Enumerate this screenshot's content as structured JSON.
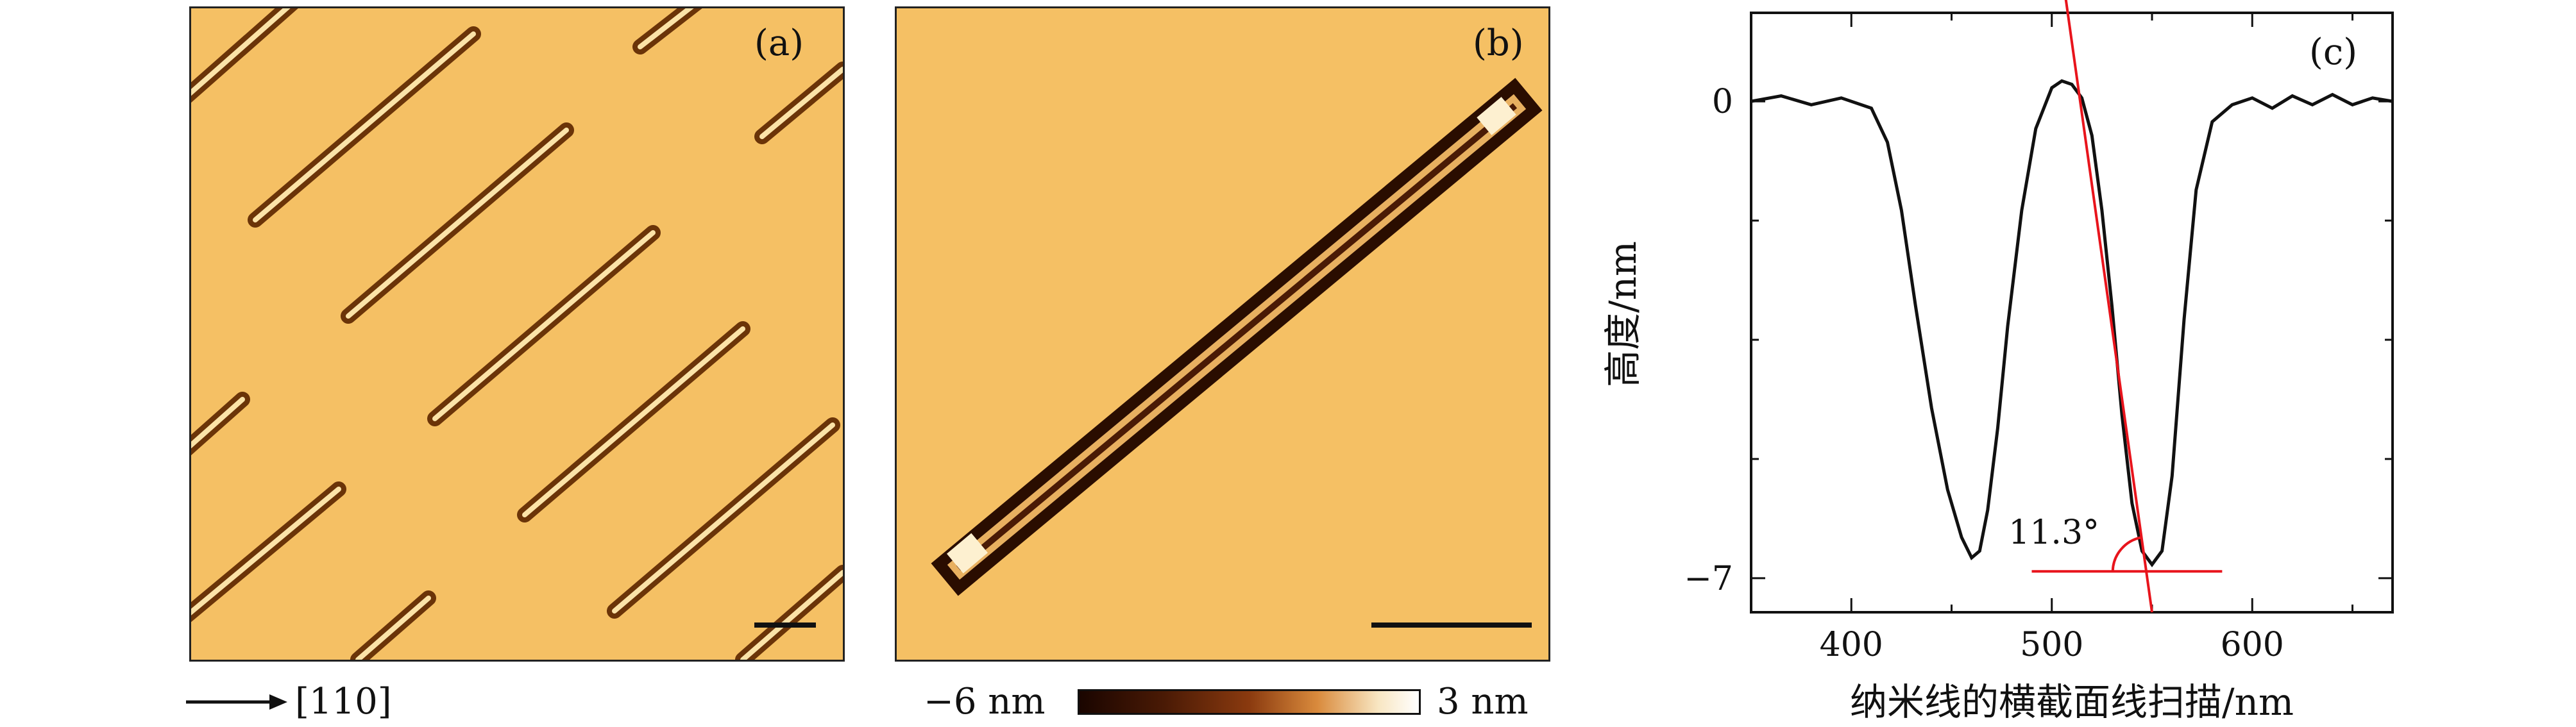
{
  "panels": {
    "a_label": "(a)",
    "b_label": "(b)",
    "c_label": "(c)"
  },
  "direction_label": "[110]",
  "colorbar": {
    "min_label": "−6 nm",
    "max_label": "3 nm"
  },
  "chart_data": {
    "type": "line",
    "xlabel": "纳米线的横截面线扫描/nm",
    "ylabel": "高度/nm",
    "xlim": [
      350,
      670
    ],
    "ylim": [
      -7.5,
      1.3
    ],
    "xticks": [
      400,
      500,
      600
    ],
    "yticks": [
      0,
      -7
    ],
    "yticklabels": [
      "0",
      "−7"
    ],
    "grid": false,
    "annotation": {
      "text": "11.3°",
      "x": 520,
      "y": -6.4
    },
    "series": [
      {
        "x": [
          350,
          365,
          380,
          395,
          410,
          418,
          425,
          432,
          440,
          448,
          455,
          460,
          464,
          468,
          473,
          478,
          485,
          492,
          500,
          505,
          510,
          515,
          520,
          525,
          530,
          535,
          540,
          545,
          550,
          555,
          560,
          566,
          572,
          580,
          590,
          600,
          610,
          620,
          630,
          640,
          650,
          660,
          670
        ],
        "y": [
          0,
          0.08,
          -0.05,
          0.05,
          -0.1,
          -0.6,
          -1.6,
          -3.0,
          -4.5,
          -5.7,
          -6.4,
          -6.7,
          -6.6,
          -6.0,
          -4.8,
          -3.3,
          -1.6,
          -0.4,
          0.2,
          0.3,
          0.25,
          0.05,
          -0.5,
          -1.6,
          -3.0,
          -4.6,
          -5.9,
          -6.6,
          -6.8,
          -6.6,
          -5.5,
          -3.2,
          -1.3,
          -0.3,
          -0.05,
          0.05,
          -0.1,
          0.08,
          -0.05,
          0.1,
          -0.05,
          0.05,
          0.0
        ]
      }
    ],
    "tangent_line": {
      "x": [
        507,
        550
      ],
      "y": [
        1.5,
        -7.5
      ]
    },
    "baseline_line": {
      "x": [
        490,
        585
      ],
      "y": [
        -6.9,
        -6.9
      ]
    }
  }
}
